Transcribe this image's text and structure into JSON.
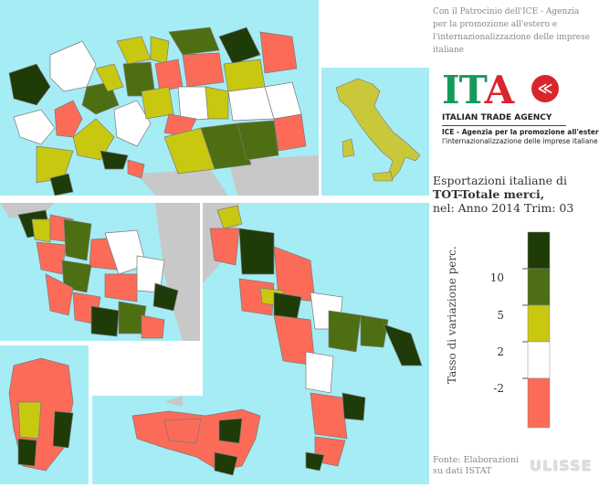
{
  "sponsor_text": "Con il Patrocinio dell'ICE - Agenzia per la promozione all'estero e l'internazionalizzazione delle imprese italiane",
  "logo": {
    "letters": [
      "I",
      "T",
      "A"
    ],
    "circle_glyph": "≪",
    "agency": "ITALIAN TRADE AGENCY",
    "desc_line1": "ICE - Agenzia per la promozione all'estero e",
    "desc_line2": "l'internazionalizzazione delle imprese italiane"
  },
  "title": {
    "line1": "Esportazioni italiane di",
    "line2": "TOT-Totale merci,",
    "line3": "nel: Anno 2014 Trim: 03"
  },
  "legend": {
    "axis_label": "Tasso di variazione perc.",
    "ticks": [
      "10",
      "5",
      "2",
      "-2"
    ],
    "classes": [
      {
        "label": "> 10",
        "color": "#1f3b08"
      },
      {
        "label": "5 – 10",
        "color": "#4d6e12"
      },
      {
        "label": "2 – 5",
        "color": "#c8c811"
      },
      {
        "label": "-2 – 2",
        "color": "#ffffff"
      },
      {
        "label": "< -2",
        "color": "#fb6b58"
      }
    ]
  },
  "source": {
    "line1": "Fonte: Elaborazioni",
    "line2": "su dati ISTAT"
  },
  "watermark": "ULISSE",
  "colors": {
    "sea": "#a6ecf5",
    "foreign_land": "#c8c8c8",
    "border": "#7a7a7a",
    "c_high": "#1f3b08",
    "c_midhigh": "#4d6e12",
    "c_mid": "#c8c811",
    "c_neutral": "#ffffff",
    "c_low": "#fb6b58",
    "inset_italy": "#c8c83a"
  }
}
